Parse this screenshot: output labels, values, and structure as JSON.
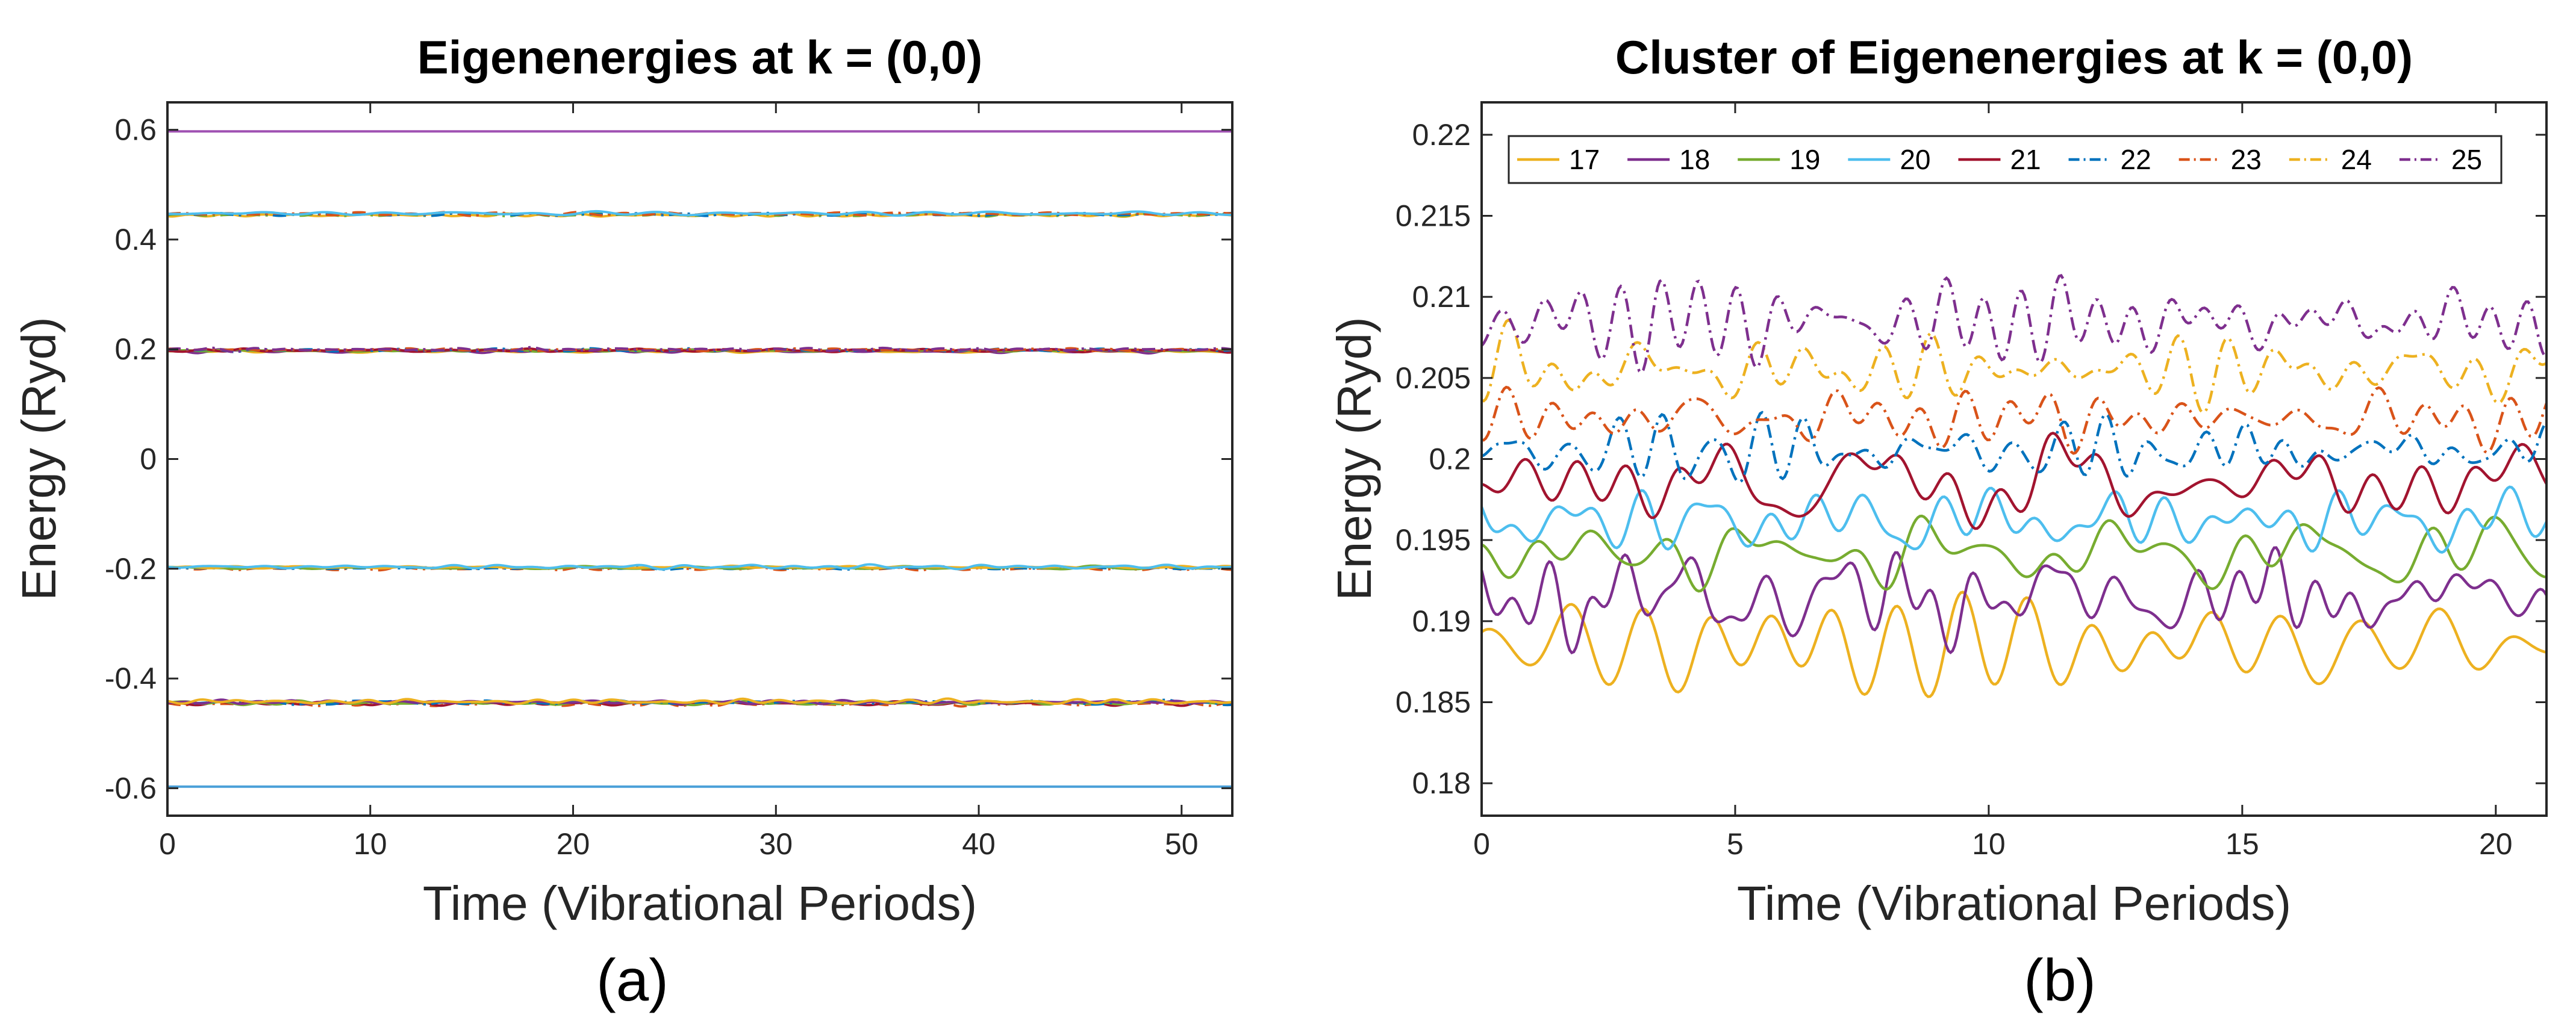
{
  "chart_data": [
    {
      "type": "line",
      "panel_label": "(a)",
      "title": "Eigenenergies at k = (0,0)",
      "xlabel": "Time (Vibrational Periods)",
      "ylabel": "Energy (Ryd)",
      "xlim": [
        0,
        52.5
      ],
      "ylim": [
        -0.65,
        0.65
      ],
      "xticks": [
        0,
        10,
        20,
        30,
        40,
        50
      ],
      "xtick_labels": [
        "0",
        "10",
        "20",
        "30",
        "40",
        "50"
      ],
      "yticks": [
        -0.6,
        -0.4,
        -0.2,
        0,
        0.2,
        0.4,
        0.6
      ],
      "ytick_labels": [
        "-0.6",
        "-0.4",
        "-0.2",
        "0",
        "0.2",
        "0.4",
        "0.6"
      ],
      "levels": [
        {
          "energy": 0.597,
          "spread": 0.0,
          "colors": [
            "#A052B2"
          ],
          "styles": [
            "solid"
          ]
        },
        {
          "energy": 0.446,
          "spread": 0.004,
          "colors": [
            "#EDB120",
            "#77AC30",
            "#0072BD",
            "#D95319",
            "#4DBEEE"
          ],
          "styles": [
            "solid",
            "dashdot",
            "dashdot",
            "dashdot",
            "solid"
          ]
        },
        {
          "energy": 0.198,
          "spread": 0.004,
          "colors": [
            "#EDB120",
            "#7E2F8E",
            "#77AC30",
            "#A2142F",
            "#0072BD",
            "#D95319",
            "#7E2F8E"
          ],
          "styles": [
            "solid",
            "solid",
            "solid",
            "solid",
            "dashdot",
            "dashdot",
            "dashdot"
          ]
        },
        {
          "energy": -0.198,
          "spread": 0.004,
          "colors": [
            "#D95319",
            "#0072BD",
            "#77AC30",
            "#EDB120",
            "#4DBEEE"
          ],
          "styles": [
            "dashdot",
            "dashdot",
            "solid",
            "solid",
            "solid"
          ]
        },
        {
          "energy": -0.444,
          "spread": 0.005,
          "colors": [
            "#D95319",
            "#A2142F",
            "#77AC30",
            "#0072BD",
            "#7E2F8E",
            "#EDB120"
          ],
          "styles": [
            "dashdot",
            "solid",
            "solid",
            "dashdot",
            "solid",
            "solid"
          ]
        },
        {
          "energy": -0.597,
          "spread": 0.0,
          "colors": [
            "#4A9FD8"
          ],
          "styles": [
            "solid"
          ]
        }
      ]
    },
    {
      "type": "line",
      "panel_label": "(b)",
      "title": "Cluster of Eigenenergies at k = (0,0)",
      "xlabel": "Time (Vibrational Periods)",
      "ylabel": "Energy (Ryd)",
      "xlim": [
        0,
        21
      ],
      "ylim": [
        0.178,
        0.222
      ],
      "xticks": [
        0,
        5,
        10,
        15,
        20
      ],
      "xtick_labels": [
        "0",
        "5",
        "10",
        "15",
        "20"
      ],
      "yticks": [
        0.18,
        0.185,
        0.19,
        0.195,
        0.2,
        0.205,
        0.21,
        0.215,
        0.22
      ],
      "ytick_labels": [
        "0.18",
        "0.185",
        "0.19",
        "0.195",
        "0.2",
        "0.205",
        "0.21",
        "0.215",
        "0.22"
      ],
      "legend_position": "top",
      "series": [
        {
          "name": "17",
          "color": "#EDB120",
          "style": "solid",
          "mean": 0.1885,
          "amplitude": 0.0017
        },
        {
          "name": "18",
          "color": "#7E2F8E",
          "style": "solid",
          "mean": 0.1915,
          "amplitude": 0.0016
        },
        {
          "name": "19",
          "color": "#77AC30",
          "style": "solid",
          "mean": 0.1942,
          "amplitude": 0.0014
        },
        {
          "name": "20",
          "color": "#4DBEEE",
          "style": "solid",
          "mean": 0.1962,
          "amplitude": 0.0012
        },
        {
          "name": "21",
          "color": "#A2142F",
          "style": "solid",
          "mean": 0.1985,
          "amplitude": 0.0014
        },
        {
          "name": "22",
          "color": "#0072BD",
          "style": "dashdot",
          "mean": 0.2005,
          "amplitude": 0.0012
        },
        {
          "name": "23",
          "color": "#D95319",
          "style": "dashdot",
          "mean": 0.2025,
          "amplitude": 0.0011
        },
        {
          "name": "24",
          "color": "#EDB120",
          "style": "dashdot",
          "mean": 0.2055,
          "amplitude": 0.0013
        },
        {
          "name": "25",
          "color": "#7E2F8E",
          "style": "dashdot",
          "mean": 0.2085,
          "amplitude": 0.0016
        }
      ]
    }
  ]
}
